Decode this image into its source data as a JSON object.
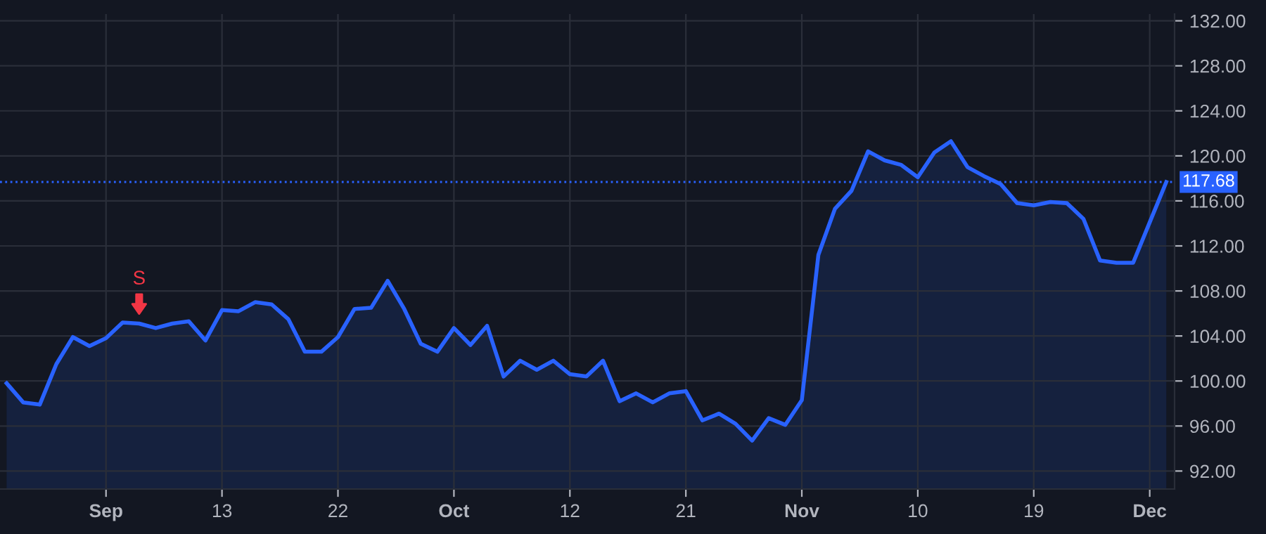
{
  "chart_data": {
    "type": "area",
    "categories": [
      null,
      null,
      null,
      null,
      null,
      null,
      "Sep",
      null,
      null,
      null,
      null,
      null,
      null,
      "13",
      null,
      null,
      null,
      null,
      null,
      null,
      "22",
      null,
      null,
      null,
      null,
      null,
      null,
      "Oct",
      null,
      null,
      null,
      null,
      null,
      null,
      "12",
      null,
      null,
      null,
      null,
      null,
      null,
      "21",
      null,
      null,
      null,
      null,
      null,
      null,
      "Nov",
      null,
      null,
      null,
      null,
      null,
      null,
      "10",
      null,
      null,
      null,
      null,
      null,
      null,
      "19",
      null,
      null,
      null,
      null,
      null,
      null,
      "Dec",
      null
    ],
    "series": [
      {
        "color": "#2962ff",
        "values": [
          99.8,
          98.1,
          97.9,
          101.5,
          103.9,
          103.1,
          103.8,
          105.2,
          105.1,
          104.7,
          105.1,
          105.3,
          103.6,
          106.3,
          106.2,
          107.0,
          106.8,
          105.5,
          102.6,
          102.6,
          103.9,
          106.4,
          106.5,
          108.9,
          106.4,
          103.3,
          102.6,
          104.7,
          103.2,
          104.9,
          100.4,
          101.8,
          101.0,
          101.8,
          100.6,
          100.4,
          101.8,
          98.2,
          98.9,
          98.1,
          98.9,
          99.1,
          96.5,
          97.1,
          96.2,
          94.7,
          96.7,
          96.1,
          98.3,
          111.2,
          115.3,
          116.9,
          120.4,
          119.6,
          119.2,
          118.1,
          120.3,
          121.3,
          119.0,
          118.2,
          117.5,
          115.8,
          115.6,
          115.9,
          115.8,
          114.4,
          110.7,
          110.5,
          110.5,
          114.1,
          117.68
        ]
      }
    ],
    "ylim": [
      90.4,
      132.6
    ],
    "yticks": [
      {
        "value": 92,
        "label": "92.00"
      },
      {
        "value": 96,
        "label": "96.00"
      },
      {
        "value": 100,
        "label": "100.00"
      },
      {
        "value": 104,
        "label": "104.00"
      },
      {
        "value": 108,
        "label": "108.00"
      },
      {
        "value": 112,
        "label": "112.00"
      },
      {
        "value": 116,
        "label": "116.00"
      },
      {
        "value": 120,
        "label": "120.00"
      },
      {
        "value": 124,
        "label": "124.00"
      },
      {
        "value": 128,
        "label": "128.00"
      },
      {
        "value": 132,
        "label": "132.00"
      }
    ],
    "ref_lines": [
      {
        "axis": "y",
        "value": 117.68,
        "label": "117.68",
        "color": "#2962ff",
        "line_style": "dotted"
      }
    ],
    "annotations": [
      {
        "text": "S",
        "y": 105.1
      }
    ],
    "grid": true
  }
}
